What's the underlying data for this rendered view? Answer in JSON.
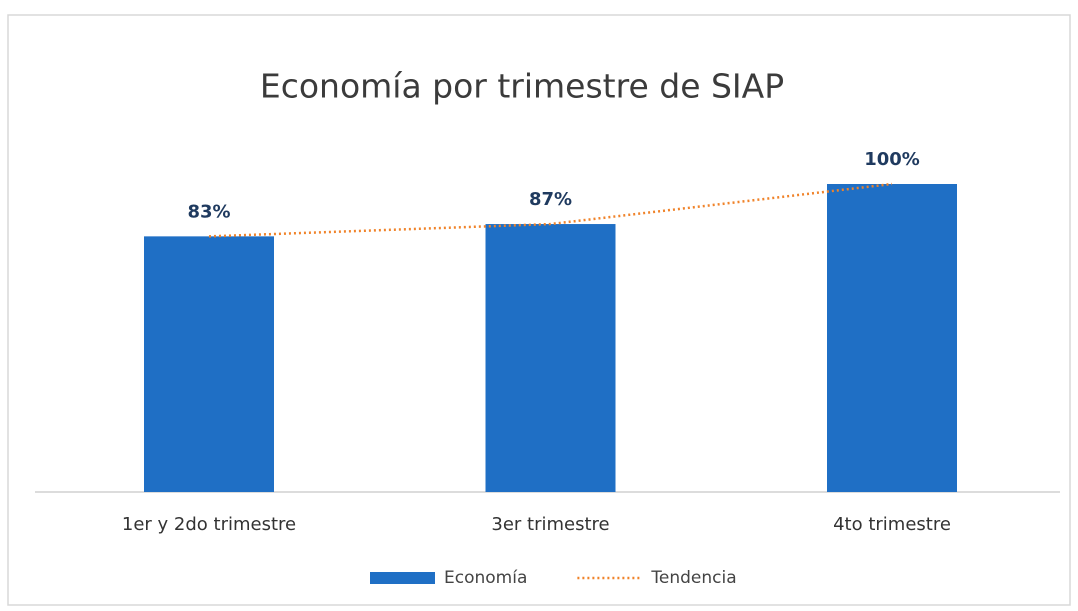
{
  "chart_data": {
    "type": "bar",
    "title": "Economía por trimestre de SIAP",
    "categories": [
      "1er y 2do trimestre",
      "3er trimestre",
      "4to trimestre"
    ],
    "series": [
      {
        "name": "Economía",
        "type": "bar",
        "color": "#1f6fc5",
        "values": [
          83,
          87,
          100
        ],
        "value_labels": [
          "83%",
          "87%",
          "100%"
        ]
      },
      {
        "name": "Tendencia",
        "type": "line",
        "color": "#f0832a",
        "values": [
          83,
          87,
          100
        ]
      }
    ],
    "ylim": [
      0,
      100
    ],
    "legend": "bottom"
  }
}
